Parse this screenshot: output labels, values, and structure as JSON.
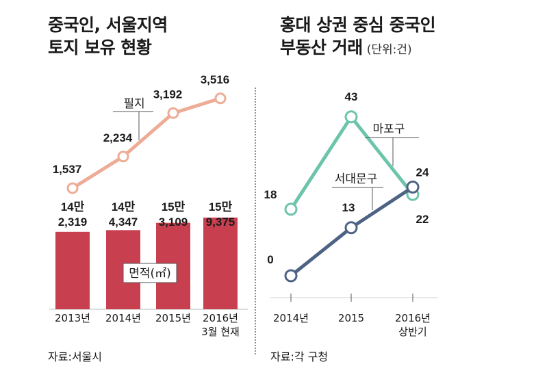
{
  "left": {
    "title_line1": "중국인, 서울지역",
    "title_line2": "토지 보유 현황",
    "source": "자료:서울시"
  },
  "right": {
    "title_line1": "홍대 상권 중심 중국인",
    "title_line2": "부동산 거래",
    "unit": "(단위:건)",
    "source": "자료:각 구청"
  },
  "colors": {
    "bar": "#c84050",
    "parcel_line": "#eeab96",
    "mapo": "#6cc4ab",
    "seodaemun": "#4e6283",
    "divider": "#8c8c8c"
  },
  "chart_data": [
    {
      "type": "bar",
      "title": "중국인, 서울지역 토지 보유 현황",
      "categories": [
        [
          "2013년"
        ],
        [
          "2014년"
        ],
        [
          "2015년"
        ],
        [
          "2016년",
          "3월 현재"
        ]
      ],
      "series": [
        {
          "name": "면적(㎡)",
          "kind": "bar",
          "values": [
            142319,
            144347,
            153109,
            159375
          ],
          "labels": [
            [
              "14만",
              "2,319"
            ],
            [
              "14만",
              "4,347"
            ],
            [
              "15만",
              "3,109"
            ],
            [
              "15만",
              "9,375"
            ]
          ]
        },
        {
          "name": "필지",
          "kind": "line",
          "values": [
            1537,
            2234,
            3192,
            3516
          ],
          "labels": [
            "1,537",
            "2,234",
            "3,192",
            "3,516"
          ]
        }
      ]
    },
    {
      "type": "line",
      "title": "홍대 상권 중심 중국인 부동산 거래",
      "unit": "(단위:건)",
      "categories": [
        [
          "2014년"
        ],
        [
          "2015"
        ],
        [
          "2016년",
          "상반기"
        ]
      ],
      "series": [
        {
          "name": "마포구",
          "values": [
            18,
            43,
            22
          ]
        },
        {
          "name": "서대문구",
          "values": [
            0,
            13,
            24
          ]
        }
      ],
      "ylim": [
        0,
        43
      ]
    }
  ]
}
